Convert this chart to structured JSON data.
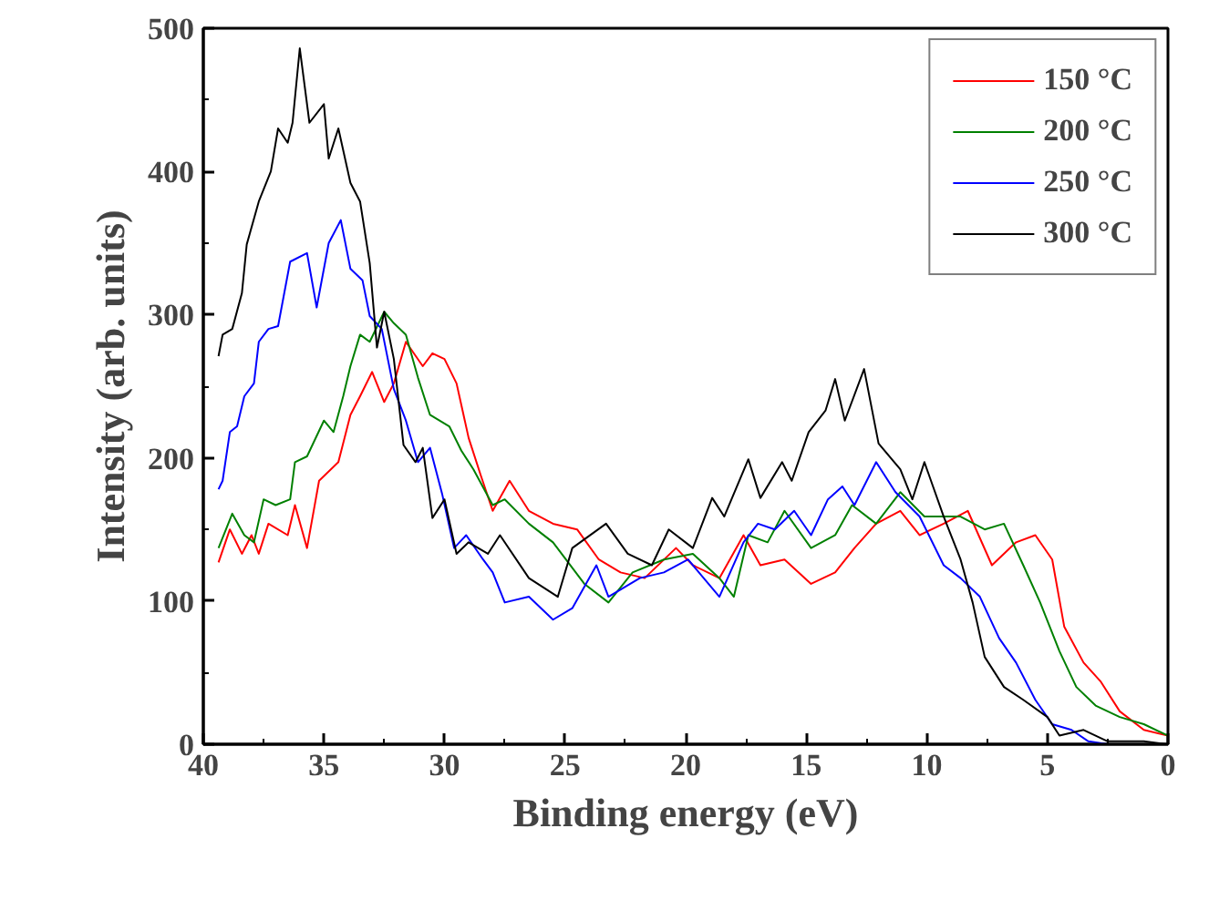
{
  "chart_data": {
    "type": "line",
    "xlabel": "Binding energy (eV)",
    "ylabel": "Intensity (arb. units)",
    "xlim": [
      40,
      0
    ],
    "ylim": [
      0,
      500
    ],
    "xticks": [
      40,
      35,
      30,
      25,
      20,
      15,
      10,
      5,
      0
    ],
    "yticks": [
      0,
      100,
      200,
      300,
      400,
      500
    ],
    "grid": false,
    "legend": "top right",
    "marker": "none",
    "line_style": "solid",
    "series": [
      {
        "name": "150 °C",
        "color": "#ff0000",
        "x": [
          39.37,
          38.9,
          38.4,
          38.0,
          37.7,
          37.3,
          36.5,
          36.2,
          35.7,
          35.2,
          34.4,
          33.9,
          33.5,
          33.0,
          32.5,
          32.1,
          31.6,
          30.9,
          30.5,
          30.0,
          29.5,
          29.0,
          28.5,
          28.0,
          27.3,
          26.5,
          25.5,
          24.5,
          23.6,
          22.7,
          21.7,
          20.4,
          19.7,
          18.6,
          17.6,
          16.9,
          15.9,
          14.8,
          13.8,
          13.0,
          12.1,
          11.1,
          10.3,
          9.3,
          8.3,
          7.3,
          6.3,
          5.5,
          4.8,
          4.3,
          3.5,
          2.8,
          2.0,
          1.0,
          0
        ],
        "values": [
          127,
          150,
          133,
          146,
          133,
          154,
          146,
          167,
          137,
          184,
          197,
          230,
          243,
          260,
          239,
          252,
          281,
          264,
          273,
          269,
          252,
          214,
          188,
          163,
          184,
          163,
          154,
          150,
          129,
          120,
          116,
          137,
          125,
          116,
          146,
          125,
          129,
          112,
          120,
          137,
          154,
          163,
          146,
          154,
          163,
          125,
          141,
          146,
          129,
          82,
          57,
          44,
          23,
          10,
          6
        ]
      },
      {
        "name": "200 °C",
        "color": "#008000",
        "x": [
          39.37,
          38.8,
          38.3,
          37.9,
          37.5,
          37.0,
          36.4,
          36.2,
          35.7,
          35.0,
          34.6,
          34.2,
          33.9,
          33.5,
          33.1,
          32.5,
          32.1,
          31.6,
          31.1,
          30.6,
          29.8,
          29.3,
          28.8,
          28.0,
          27.5,
          26.5,
          25.5,
          24.2,
          23.2,
          22.2,
          20.9,
          19.7,
          18.6,
          18.0,
          17.4,
          16.6,
          15.9,
          14.8,
          13.8,
          13.1,
          12.1,
          11.1,
          10.1,
          8.6,
          7.6,
          6.8,
          6.0,
          5.3,
          4.5,
          3.8,
          3.0,
          2.0,
          1.0,
          0
        ],
        "values": [
          137,
          161,
          146,
          141,
          171,
          167,
          171,
          197,
          201,
          226,
          218,
          243,
          264,
          286,
          281,
          302,
          294,
          286,
          256,
          230,
          222,
          205,
          192,
          167,
          171,
          154,
          141,
          112,
          99,
          120,
          129,
          133,
          116,
          103,
          146,
          141,
          163,
          137,
          146,
          167,
          154,
          176,
          159,
          159,
          150,
          154,
          125,
          99,
          65,
          40,
          27,
          19,
          14,
          6
        ]
      },
      {
        "name": "250 °C",
        "color": "#0000ff",
        "x": [
          39.37,
          39.2,
          38.9,
          38.6,
          38.3,
          37.9,
          37.7,
          37.3,
          36.9,
          36.4,
          35.7,
          35.3,
          34.8,
          34.3,
          33.9,
          33.4,
          33.1,
          32.6,
          32.1,
          31.6,
          31.1,
          30.6,
          30.1,
          29.6,
          29.1,
          28.4,
          28.0,
          27.5,
          26.5,
          25.5,
          24.7,
          23.7,
          23.2,
          21.9,
          20.9,
          19.9,
          18.6,
          17.6,
          17.0,
          16.3,
          15.5,
          14.8,
          14.1,
          13.5,
          13.0,
          12.1,
          11.3,
          10.3,
          9.3,
          8.6,
          7.8,
          7.0,
          6.3,
          5.5,
          4.8,
          4.0,
          3.3,
          2.5
        ],
        "values": [
          178,
          184,
          218,
          222,
          243,
          252,
          281,
          290,
          292,
          337,
          343,
          305,
          350,
          366,
          332,
          324,
          299,
          290,
          248,
          226,
          197,
          207,
          175,
          137,
          146,
          129,
          120,
          99,
          103,
          87,
          95,
          125,
          103,
          116,
          120,
          129,
          103,
          141,
          154,
          150,
          163,
          146,
          171,
          180,
          167,
          197,
          176,
          159,
          125,
          116,
          103,
          74,
          57,
          31,
          14,
          10,
          2,
          0
        ]
      },
      {
        "name": "300 °C",
        "color": "#000000",
        "x": [
          39.37,
          39.2,
          38.8,
          38.4,
          38.2,
          37.7,
          37.2,
          36.9,
          36.5,
          36.3,
          36.0,
          35.6,
          35.0,
          34.8,
          34.4,
          33.9,
          33.5,
          33.1,
          32.8,
          32.5,
          32.1,
          31.7,
          31.2,
          30.9,
          30.5,
          30.0,
          29.5,
          29.0,
          28.2,
          27.7,
          26.5,
          25.3,
          24.7,
          23.3,
          22.4,
          21.4,
          20.7,
          19.7,
          18.9,
          18.4,
          17.4,
          16.9,
          16.0,
          15.6,
          14.9,
          14.2,
          13.8,
          13.4,
          12.6,
          12.0,
          11.1,
          10.6,
          10.1,
          9.3,
          8.6,
          8.1,
          7.6,
          6.8,
          6.0,
          5.0,
          4.5,
          3.5,
          2.5,
          1.0,
          0
        ],
        "values": [
          271,
          286,
          290,
          315,
          349,
          379,
          400,
          430,
          420,
          434,
          486,
          434,
          447,
          409,
          430,
          392,
          379,
          336,
          277,
          302,
          269,
          209,
          197,
          207,
          158,
          171,
          133,
          141,
          133,
          146,
          116,
          103,
          137,
          154,
          133,
          125,
          150,
          137,
          172,
          159,
          199,
          172,
          197,
          184,
          218,
          233,
          255,
          226,
          262,
          210,
          192,
          171,
          197,
          159,
          129,
          99,
          61,
          40,
          31,
          19,
          6,
          10,
          2,
          2,
          0
        ]
      }
    ]
  }
}
